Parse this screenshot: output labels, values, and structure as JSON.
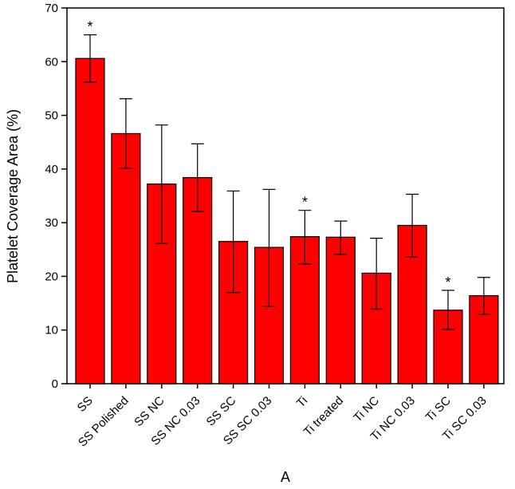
{
  "chart_data": {
    "type": "bar",
    "title": "",
    "xlabel": "A",
    "ylabel": "Platelet Coverage Area (%)",
    "ylim": [
      0,
      70
    ],
    "yticks": [
      0,
      10,
      20,
      30,
      40,
      50,
      60,
      70
    ],
    "categories": [
      "SS",
      "SS Polished",
      "SS NC",
      "SS NC 0.03",
      "SS SC",
      "SS SC 0.03",
      "Ti",
      "Ti treated",
      "Ti NC",
      "Ti NC  0.03",
      "Ti SC",
      "Ti SC 0.03"
    ],
    "values": [
      60.6,
      46.6,
      37.2,
      38.4,
      26.5,
      25.4,
      27.4,
      27.3,
      20.6,
      29.5,
      13.7,
      16.4
    ],
    "error_upper": [
      65.0,
      53.1,
      48.2,
      44.7,
      35.9,
      36.2,
      32.3,
      30.3,
      27.1,
      35.3,
      17.4,
      19.8
    ],
    "error_lower": [
      56.2,
      40.1,
      26.1,
      32.1,
      17.0,
      14.4,
      22.3,
      24.1,
      13.9,
      23.6,
      10.1,
      12.9
    ],
    "significance": [
      "*",
      "",
      "",
      "",
      "",
      "",
      "*",
      "",
      "",
      "",
      "*",
      ""
    ],
    "bar_color": "#ff0000",
    "grid": false,
    "legend": "none"
  }
}
